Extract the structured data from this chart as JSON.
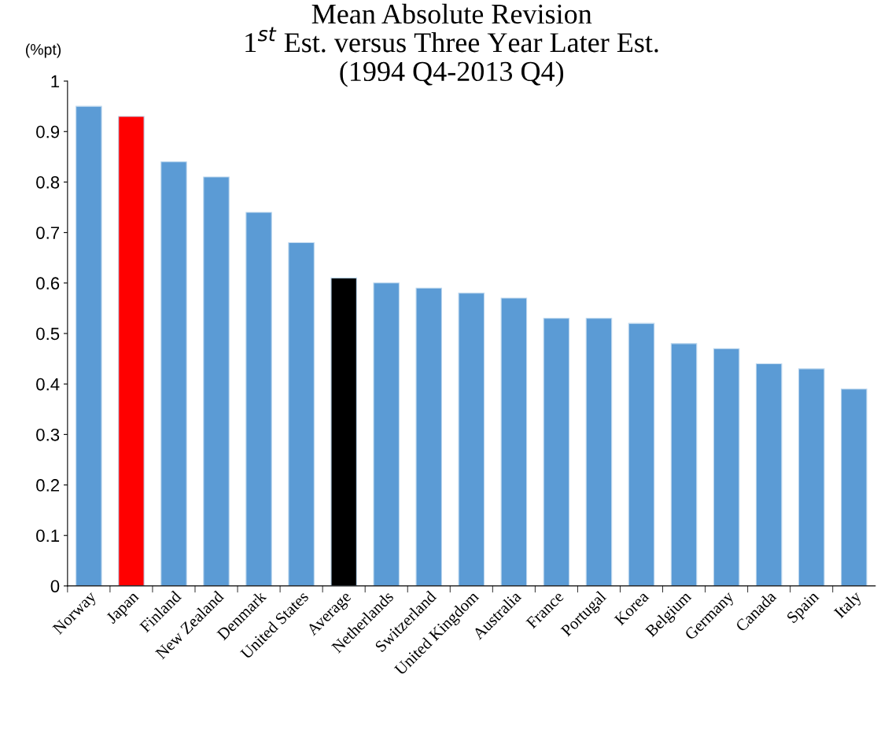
{
  "chart_data": {
    "type": "bar",
    "title": "Mean Absolute Revision\n1$^{st}$ Est. versus Three Year Later Est.\n(1994 Q4-2013 Q4)",
    "ylabel": "(%pt)",
    "categories": [
      "Norway",
      "Japan",
      "Finland",
      "New Zealand",
      "Denmark",
      "United States",
      "Average",
      "Netherlands",
      "Switzerland",
      "United Kingdom",
      "Australia",
      "France",
      "Portugal",
      "Korea",
      "Belgium",
      "Germany",
      "Canada",
      "Spain",
      "Italy"
    ],
    "values": [
      0.95,
      0.93,
      0.84,
      0.81,
      0.74,
      0.68,
      0.61,
      0.6,
      0.59,
      0.58,
      0.57,
      0.53,
      0.53,
      0.52,
      0.48,
      0.47,
      0.44,
      0.43,
      0.39
    ],
    "colors": [
      "#5b9bd5",
      "#ff0000",
      "#5b9bd5",
      "#5b9bd5",
      "#5b9bd5",
      "#5b9bd5",
      "#000000",
      "#5b9bd5",
      "#5b9bd5",
      "#5b9bd5",
      "#5b9bd5",
      "#5b9bd5",
      "#5b9bd5",
      "#5b9bd5",
      "#5b9bd5",
      "#5b9bd5",
      "#5b9bd5",
      "#5b9bd5",
      "#5b9bd5"
    ],
    "ylim": [
      0,
      1
    ],
    "yticks": [
      0,
      0.1,
      0.2,
      0.3,
      0.4,
      0.5,
      0.6,
      0.7,
      0.8,
      0.9,
      1
    ],
    "grid": false
  }
}
